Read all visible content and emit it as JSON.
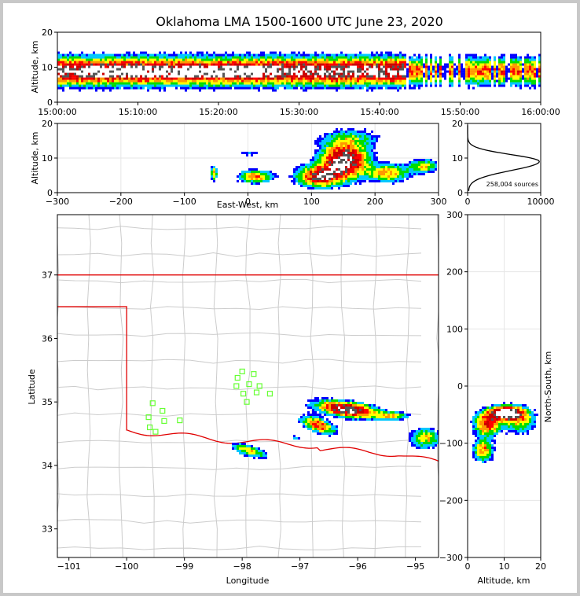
{
  "chart_data": {
    "type": "heatmap",
    "title": "Oklahoma LMA 1500-1600 UTC June 23, 2020",
    "panels": {
      "time_altitude": {
        "ylabel": "Altitude, km",
        "ylim": [
          0,
          20
        ],
        "y_ticks": [
          "0",
          "10",
          "20"
        ],
        "x_ticks": [
          "15:00:00",
          "15:10:00",
          "15:20:00",
          "15:30:00",
          "15:40:00",
          "15:50:00",
          "16:00:00"
        ],
        "core_altitude_km": 8.5
      },
      "ew_altitude": {
        "xlabel": "East-West, km",
        "ylabel": "Altitude, km",
        "xlim": [
          -300,
          300
        ],
        "ylim": [
          0,
          20
        ],
        "x_ticks": [
          "−300",
          "−200",
          "−100",
          "0",
          "100",
          "200",
          "300"
        ],
        "y_ticks": [
          "0",
          "10",
          "20"
        ],
        "core_km": [
          150,
          9.5
        ]
      },
      "altitude_histogram": {
        "xlim": [
          0,
          10000
        ],
        "ylim": [
          0,
          20
        ],
        "x_ticks": [
          "0",
          "10000"
        ],
        "y_ticks": [
          "0",
          "10",
          "20"
        ],
        "source_count_label": "258,004 sources",
        "peak_altitude_km": 9,
        "peak_count": 9800
      },
      "plan_view": {
        "xlabel": "Longitude",
        "ylabel": "Latitude",
        "xlim": [
          -101.2,
          -94.6
        ],
        "ylim": [
          32.55,
          37.95
        ],
        "x_ticks": [
          "−101",
          "−100",
          "−99",
          "−98",
          "−97",
          "−96",
          "−95"
        ],
        "y_ticks": [
          "33",
          "34",
          "35",
          "36",
          "37"
        ],
        "core_lonlat": [
          -96.2,
          34.9
        ],
        "stations": [
          [
            -99.55,
            34.98
          ],
          [
            -99.38,
            34.86
          ],
          [
            -99.62,
            34.76
          ],
          [
            -99.35,
            34.7
          ],
          [
            -99.6,
            34.6
          ],
          [
            -99.5,
            34.53
          ],
          [
            -99.08,
            34.71
          ],
          [
            -98.0,
            35.48
          ],
          [
            -97.8,
            35.44
          ],
          [
            -98.08,
            35.38
          ],
          [
            -97.88,
            35.28
          ],
          [
            -98.1,
            35.25
          ],
          [
            -97.7,
            35.25
          ],
          [
            -97.75,
            35.15
          ],
          [
            -97.52,
            35.13
          ],
          [
            -97.98,
            35.13
          ],
          [
            -97.92,
            35.0
          ]
        ]
      },
      "ns_altitude": {
        "xlabel": "Altitude, km",
        "ylabel": "North-South, km",
        "xlim": [
          0,
          20
        ],
        "ylim": [
          -300,
          300
        ],
        "x_ticks": [
          "0",
          "10",
          "20"
        ],
        "y_ticks": [
          "−300",
          "−200",
          "−100",
          "0",
          "100",
          "200",
          "300"
        ],
        "core_km": [
          10,
          -45
        ]
      }
    }
  }
}
